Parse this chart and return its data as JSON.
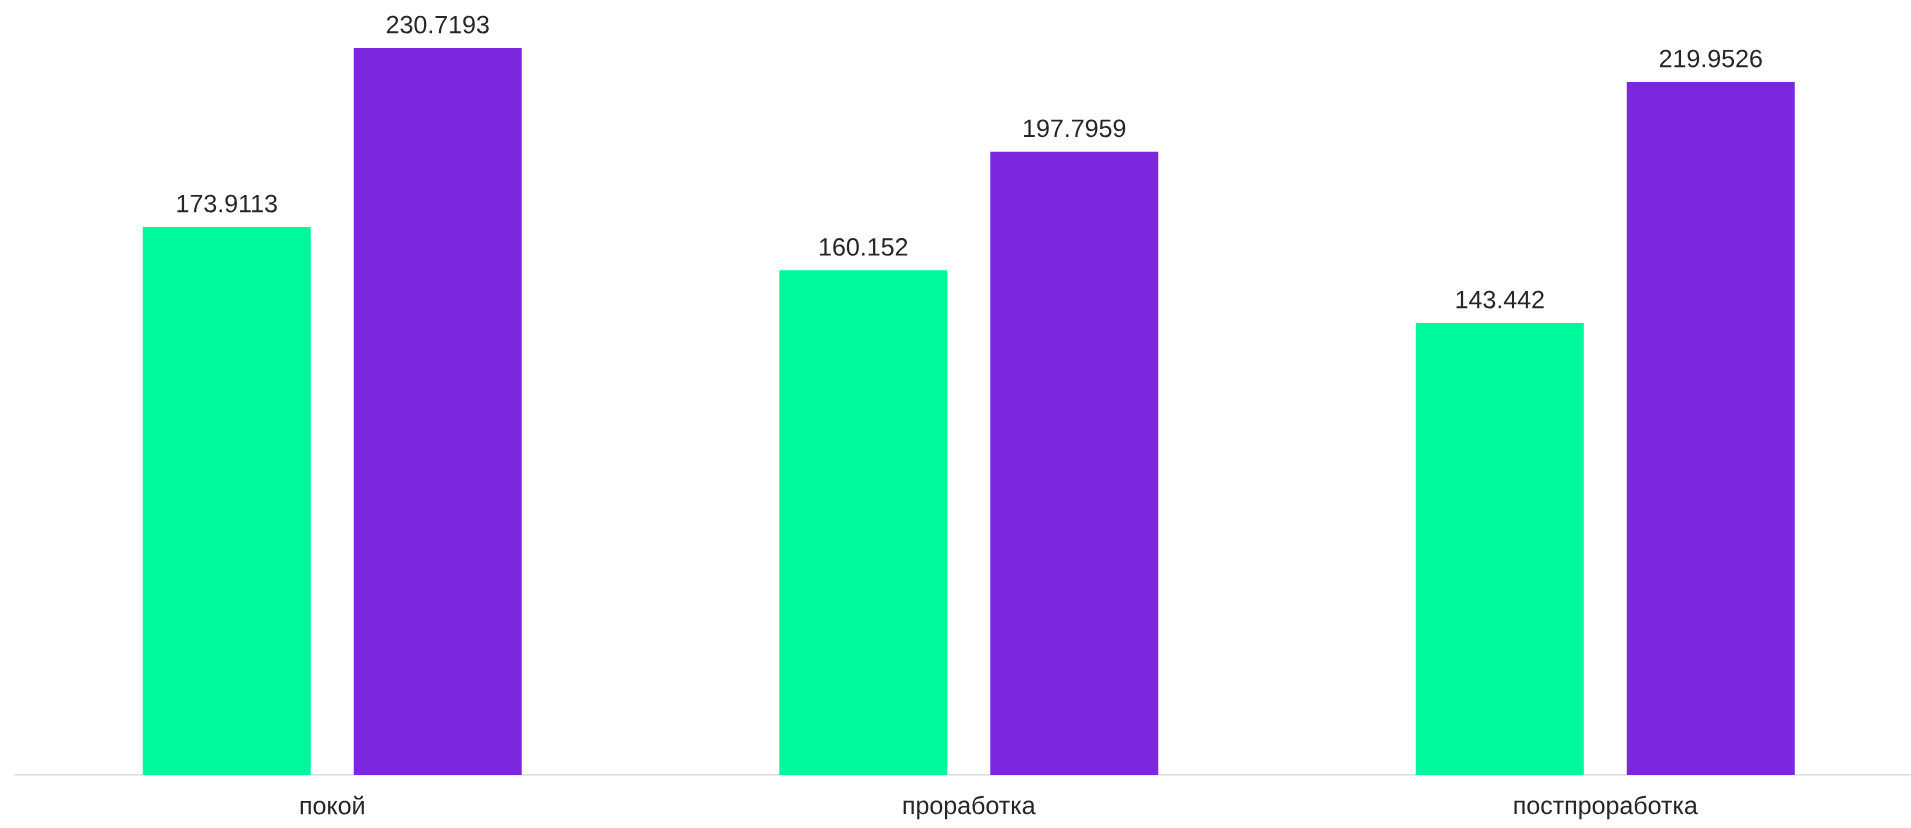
{
  "chart_data": {
    "type": "bar",
    "categories": [
      "покой",
      "проработка",
      "постпроработка"
    ],
    "series": [
      {
        "color": "#00f89c",
        "values": [
          173.9113,
          160.152,
          143.442
        ]
      },
      {
        "color": "#7b27dd",
        "values": [
          230.7193,
          197.7959,
          219.9526
        ]
      }
    ],
    "data_labels": true
  }
}
